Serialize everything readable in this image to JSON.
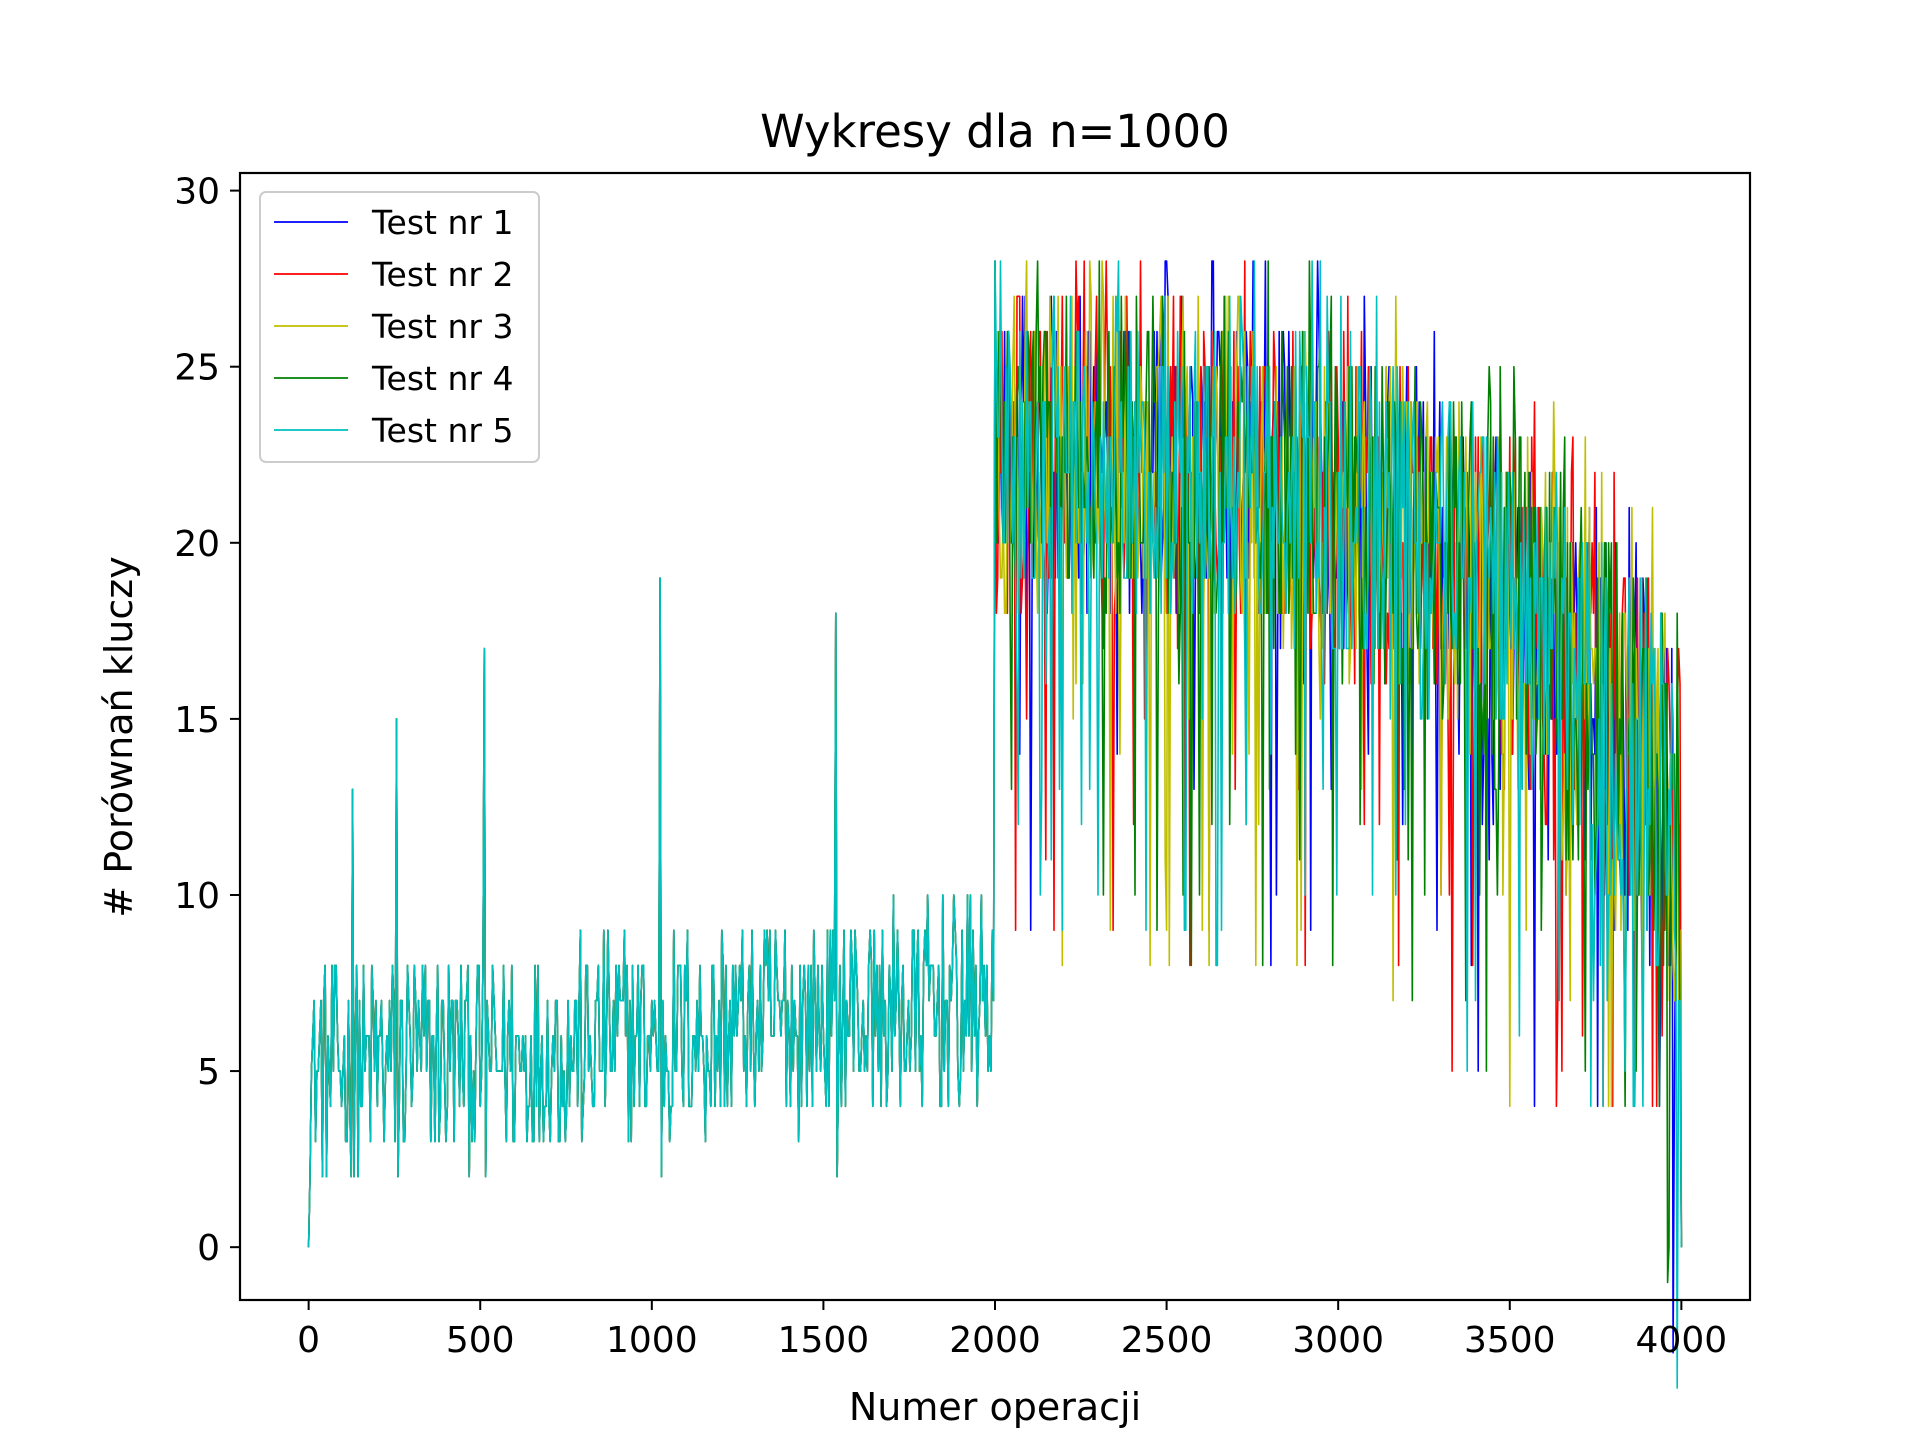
{
  "chart_data": {
    "type": "line",
    "title": "Wykresy dla n=1000",
    "xlabel": "Numer operacji",
    "ylabel": "# Porównań kluczy",
    "xlim": [
      -200,
      4200
    ],
    "ylim": [
      -1.5,
      30.5
    ],
    "x_ticks": [
      0,
      500,
      1000,
      1500,
      2000,
      2500,
      3000,
      3500,
      4000
    ],
    "y_ticks": [
      0,
      5,
      10,
      15,
      20,
      25,
      30
    ],
    "x_tick_labels": [
      "0",
      "500",
      "1000",
      "1500",
      "2000",
      "2500",
      "3000",
      "3500",
      "4000"
    ],
    "y_tick_labels": [
      "0",
      "5",
      "10",
      "15",
      "20",
      "25",
      "30"
    ],
    "legend_position": "top-left",
    "grid": false,
    "series": [
      {
        "name": "Test nr 1",
        "color": "#0000ff"
      },
      {
        "name": "Test nr 2",
        "color": "#ff0000"
      },
      {
        "name": "Test nr 3",
        "color": "#bfbf00"
      },
      {
        "name": "Test nr 4",
        "color": "#008000"
      },
      {
        "name": "Test nr 5",
        "color": "#00bfbf"
      }
    ],
    "insertion_phase": {
      "x_range": [
        0,
        2000
      ],
      "baseline_start": 5,
      "baseline_end": 7,
      "min": 2,
      "max_peaks": [
        {
          "x": 128,
          "y": 13
        },
        {
          "x": 256,
          "y": 15
        },
        {
          "x": 512,
          "y": 17
        },
        {
          "x": 1024,
          "y": 19
        },
        {
          "x": 1536,
          "y": 18
        }
      ]
    },
    "deletion_phase": {
      "x_range": [
        2000,
        4000
      ],
      "peak_start": 28,
      "band_start": [
        18,
        27
      ],
      "band_end": [
        6,
        18
      ],
      "max": 29,
      "min": 4,
      "end_value": 0
    }
  }
}
